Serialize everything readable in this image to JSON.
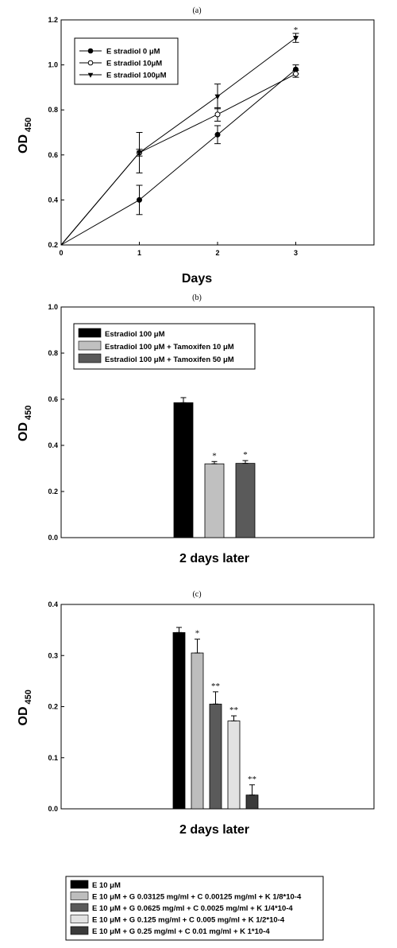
{
  "chart_data": [
    {
      "type": "line",
      "panel_label": "(a)",
      "xlabel": "Days",
      "ylabel_main": "OD",
      "ylabel_sub": "450",
      "xlim": [
        0,
        4
      ],
      "ylim": [
        0.2,
        1.2
      ],
      "x_ticks": [
        0,
        1,
        2,
        3
      ],
      "x_tick_labels": [
        "0",
        "1",
        "2",
        "3"
      ],
      "y_ticks": [
        0.2,
        0.4,
        0.6,
        0.8,
        1.0,
        1.2
      ],
      "y_tick_labels": [
        "0.2",
        "0.4",
        "0.6",
        "0.8",
        "1.0",
        "1.2"
      ],
      "x": [
        0,
        1,
        2,
        3
      ],
      "series": [
        {
          "name": "E stradiol 0 μM",
          "marker": "filled-circle",
          "values": [
            0.2,
            0.4,
            0.69,
            0.98
          ],
          "errors": [
            0,
            0.065,
            0.04,
            0.02
          ]
        },
        {
          "name": "E stradiol 10μM",
          "marker": "open-circle",
          "values": [
            0.2,
            0.61,
            0.78,
            0.96
          ],
          "errors": [
            0,
            0.09,
            0.03,
            0.015
          ]
        },
        {
          "name": "E stradiol 100μM",
          "marker": "filled-triangle-down",
          "values": [
            0.2,
            0.61,
            0.86,
            1.12
          ],
          "errors": [
            0,
            0.015,
            0.055,
            0.02
          ]
        }
      ],
      "annotations": [
        {
          "x": 3,
          "y": 1.15,
          "text": "*"
        }
      ],
      "legend_position": "top-left",
      "grid": false
    },
    {
      "type": "bar",
      "panel_label": "(b)",
      "xlabel": "2 days later",
      "ylabel_main": "OD",
      "ylabel_sub": " 450",
      "ylim": [
        0,
        1.0
      ],
      "y_ticks": [
        0,
        0.2,
        0.4,
        0.6,
        0.8,
        1.0
      ],
      "y_tick_labels": [
        "0.0",
        "0.2",
        "0.4",
        "0.6",
        "0.8",
        "1.0"
      ],
      "series": [
        {
          "name": "Estradiol 100 μM",
          "color": "#000000",
          "value": 0.585,
          "error": 0.022,
          "mark": ""
        },
        {
          "name": "Estradiol 100 μM + Tamoxifen 10 μM",
          "color": "#c0c0c0",
          "value": 0.32,
          "error": 0.01,
          "mark": "*"
        },
        {
          "name": "Estradiol 100 μM + Tamoxifen 50 μM",
          "color": "#5a5a5a",
          "value": 0.322,
          "error": 0.012,
          "mark": "*"
        }
      ],
      "legend_position": "top-left",
      "grid": false
    },
    {
      "type": "bar",
      "panel_label": "(c)",
      "xlabel": "2 days later",
      "ylabel_main": "OD",
      "ylabel_sub": "450",
      "ylim": [
        0,
        0.4
      ],
      "y_ticks": [
        0,
        0.1,
        0.2,
        0.3,
        0.4
      ],
      "y_tick_labels": [
        "0.0",
        "0.1",
        "0.2",
        "0.3",
        "0.4"
      ],
      "series": [
        {
          "name": "E 10 μM",
          "color": "#000000",
          "value": 0.345,
          "error": 0.01,
          "mark": ""
        },
        {
          "name": "E 10 μM + G 0.03125 mg/ml + C 0.00125 mg/ml + K 1/8*10-4",
          "color": "#bdbdbd",
          "value": 0.305,
          "error": 0.027,
          "mark": "*"
        },
        {
          "name": "E 10 μM + G 0.0625 mg/ml + C 0.0025 mg/ml + K 1/4*10-4",
          "color": "#5a5a5a",
          "value": 0.205,
          "error": 0.024,
          "mark": "**"
        },
        {
          "name": "E 10 μM + G 0.125 mg/ml + C 0.005 mg/ml + K 1/2*10-4",
          "color": "#e2e2e2",
          "value": 0.172,
          "error": 0.01,
          "mark": "**"
        },
        {
          "name": "E 10 μM + G 0.25 mg/ml + C 0.01 mg/ml + K 1*10-4",
          "color": "#3a3a3a",
          "value": 0.027,
          "error": 0.02,
          "mark": "**"
        }
      ],
      "legend_position": "below",
      "grid": false
    }
  ]
}
